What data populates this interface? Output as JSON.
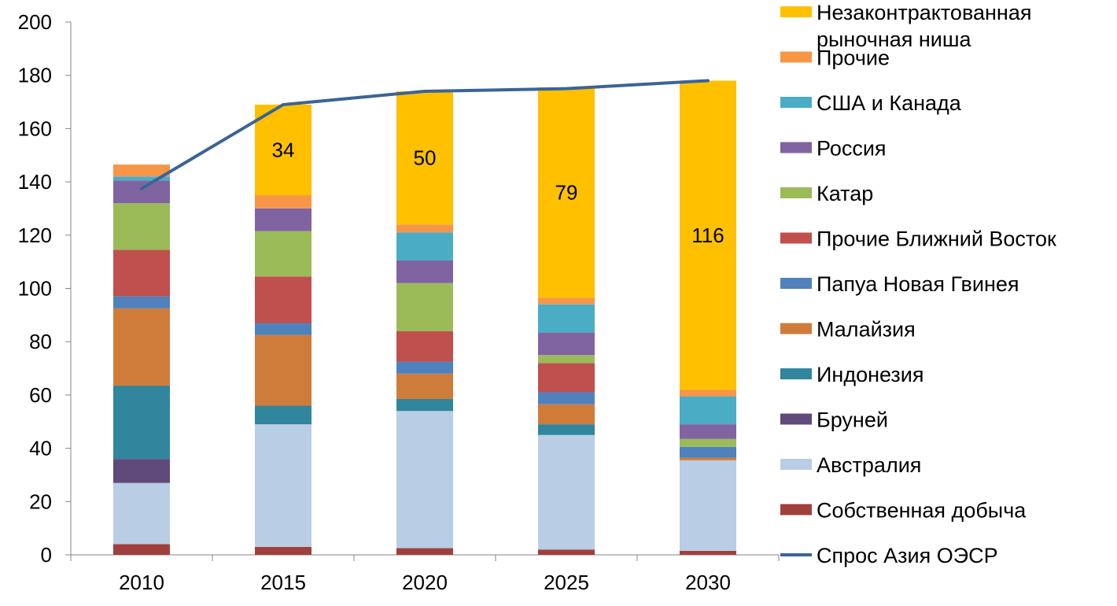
{
  "chart_data": {
    "type": "bar",
    "stacked": true,
    "title": "",
    "xlabel": "",
    "ylabel": "",
    "ylim": [
      0,
      200
    ],
    "ytick_step": 20,
    "yticks": [
      "0",
      "20",
      "40",
      "60",
      "80",
      "100",
      "120",
      "140",
      "160",
      "180",
      "200"
    ],
    "categories": [
      "2010",
      "2015",
      "2020",
      "2025",
      "2030"
    ],
    "series": [
      {
        "name": "Собственная добыча",
        "color": "#A0403E",
        "values": [
          4,
          3,
          2.5,
          2,
          1.5
        ]
      },
      {
        "name": "Австралия",
        "color": "#B9CDE5",
        "values": [
          23,
          46,
          51.5,
          43,
          34
        ]
      },
      {
        "name": "Бруней",
        "color": "#604A7B",
        "values": [
          9,
          0,
          0,
          0,
          0
        ]
      },
      {
        "name": "Индонезия",
        "color": "#31859C",
        "values": [
          27.5,
          7,
          4.5,
          4,
          0
        ]
      },
      {
        "name": "Малайзия",
        "color": "#CF7C3A",
        "values": [
          29,
          26.5,
          9.5,
          7.5,
          1
        ]
      },
      {
        "name": "Папуа Новая Гвинея",
        "color": "#4F81BD",
        "values": [
          4.5,
          4.5,
          4.5,
          4.5,
          4
        ]
      },
      {
        "name": "Прочие Ближний Восток",
        "color": "#C0504D",
        "values": [
          17.5,
          17.5,
          11.5,
          11,
          0
        ]
      },
      {
        "name": "Катар",
        "color": "#9BBB59",
        "values": [
          17.5,
          17,
          18,
          3,
          3
        ]
      },
      {
        "name": "Россия",
        "color": "#8064A2",
        "values": [
          8.5,
          8.5,
          8.5,
          8.5,
          5.5
        ]
      },
      {
        "name": "США и Канада",
        "color": "#4BACC6",
        "values": [
          1.5,
          0,
          10.5,
          10.5,
          10.5
        ]
      },
      {
        "name": "Прочие",
        "color": "#F79646",
        "values": [
          4.5,
          5,
          3,
          2.5,
          2.5
        ]
      },
      {
        "name": "Незаконтрактованная рыночная ниша",
        "color": "#FFC000",
        "values": [
          0,
          34,
          50,
          79,
          116
        ]
      }
    ],
    "data_labels": [
      "",
      "34",
      "50",
      "79",
      "116"
    ],
    "line": {
      "name": "Спрос Азия ОЭСР",
      "color": "#3B6496",
      "values": [
        137.5,
        169,
        174,
        175,
        178
      ]
    },
    "legend_order": [
      "Незаконтрактованная рыночная ниша",
      "Прочие",
      "США и Канада",
      "Россия",
      "Катар",
      "Прочие Ближний Восток",
      "Папуа Новая Гвинея",
      "Малайзия",
      "Индонезия",
      "Бруней",
      "Австралия",
      "Собственная добыча",
      "Спрос Азия ОЭСР"
    ],
    "legend_position": "right",
    "grid": false
  }
}
